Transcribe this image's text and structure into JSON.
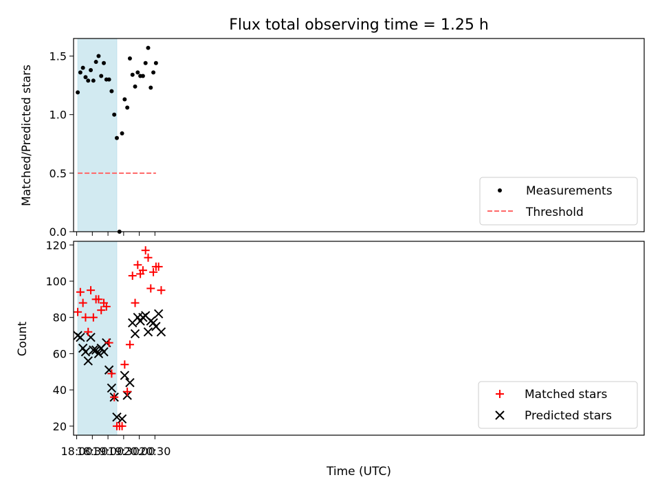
{
  "chart_data": [
    {
      "type": "scatter",
      "title": "Flux total observing time = 1.25 h",
      "xlabel": "",
      "ylabel": "Matched/Predicted stars",
      "xlim_minutes": [
        -6,
        1088
      ],
      "ylim": [
        0,
        1.65
      ],
      "yticks": [
        0.0,
        0.5,
        1.0,
        1.5
      ],
      "ytick_labels": [
        "0.0",
        "0.5",
        "1.0",
        "1.5"
      ],
      "shaded_region_minutes": [
        2,
        77
      ],
      "shade_color": "#add8e6",
      "legend": {
        "placement": "lower right",
        "entries": [
          "Measurements",
          "Threshold"
        ]
      },
      "threshold": {
        "name": "Threshold",
        "value": 0.5,
        "color": "#ff6666",
        "style": "dashed",
        "x_range_minutes": [
          2,
          152
        ]
      },
      "series": [
        {
          "name": "Measurements",
          "marker": "dot",
          "color": "#000000",
          "x_minutes": [
            2,
            7,
            12,
            17,
            22,
            27,
            32,
            37,
            42,
            47,
            52,
            57,
            62,
            67,
            72,
            77,
            82,
            87,
            92,
            97,
            102,
            107,
            112,
            117,
            122,
            127,
            132,
            137,
            142,
            147,
            152
          ],
          "y": [
            1.19,
            1.36,
            1.4,
            1.32,
            1.29,
            1.38,
            1.29,
            1.45,
            1.5,
            1.33,
            1.44,
            1.3,
            1.3,
            1.2,
            1.0,
            0.8,
            0.0,
            0.84,
            1.13,
            1.06,
            1.48,
            1.34,
            1.24,
            1.36,
            1.33,
            1.33,
            1.44,
            1.57,
            1.23,
            1.36,
            1.44
          ]
        }
      ]
    },
    {
      "type": "scatter",
      "title": "",
      "xlabel": "Time (UTC)",
      "ylabel": "Count",
      "ylim": [
        15,
        122
      ],
      "yticks": [
        20,
        40,
        60,
        80,
        100,
        120
      ],
      "ytick_labels": [
        "20",
        "40",
        "60",
        "80",
        "100",
        "120"
      ],
      "xtick_labels": [
        "18:00",
        "18:30",
        "19:00",
        "19:30",
        "20:00",
        "20:30"
      ],
      "legend": {
        "placement": "lower right",
        "entries": [
          "Matched stars",
          "Predicted stars"
        ]
      },
      "series": [
        {
          "name": "Matched stars",
          "marker": "plus",
          "color": "#ff0000",
          "x_time": [
            "18:02",
            "18:07",
            "18:12",
            "18:17",
            "18:22",
            "18:27",
            "18:32",
            "18:37",
            "18:42",
            "18:47",
            "18:52",
            "18:57",
            "19:02",
            "19:07",
            "19:12",
            "19:17",
            "19:22",
            "19:27",
            "19:32",
            "19:37",
            "19:42",
            "19:47",
            "19:52",
            "19:57",
            "20:02",
            "20:07",
            "20:12",
            "20:17",
            "20:22",
            "20:27",
            "20:32",
            "20:37",
            "20:42"
          ],
          "y": [
            83,
            94,
            88,
            80,
            72,
            95,
            80,
            90,
            90,
            84,
            88,
            86,
            66,
            49,
            36,
            20,
            20,
            20,
            54,
            39,
            65,
            103,
            88,
            109,
            104,
            106,
            117,
            113,
            96,
            105,
            108,
            108,
            95
          ]
        },
        {
          "name": "Predicted stars",
          "marker": "x",
          "color": "#000000",
          "x_time": [
            "18:02",
            "18:07",
            "18:12",
            "18:17",
            "18:22",
            "18:27",
            "18:32",
            "18:37",
            "18:42",
            "18:47",
            "18:52",
            "18:57",
            "19:02",
            "19:07",
            "19:12",
            "19:17",
            "19:27",
            "19:32",
            "19:37",
            "19:42",
            "19:47",
            "19:52",
            "19:57",
            "20:02",
            "20:07",
            "20:12",
            "20:17",
            "20:22",
            "20:27",
            "20:32",
            "20:37",
            "20:42"
          ],
          "y": [
            70,
            69,
            63,
            61,
            56,
            69,
            62,
            62,
            60,
            63,
            61,
            66,
            51,
            41,
            36,
            25,
            24,
            48,
            37,
            44,
            77,
            71,
            80,
            78,
            80,
            81,
            72,
            78,
            77,
            75,
            82,
            72
          ]
        }
      ]
    }
  ]
}
